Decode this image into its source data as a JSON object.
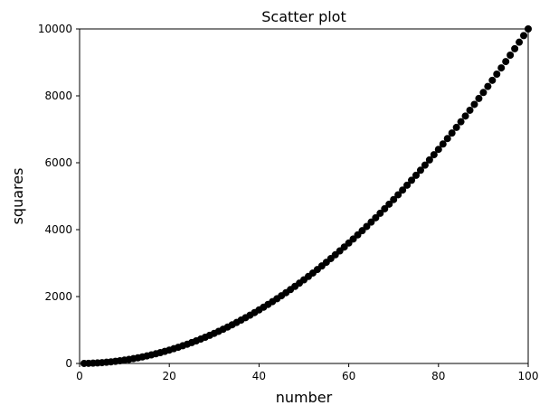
{
  "chart_data": {
    "type": "scatter",
    "title": "Scatter plot",
    "xlabel": "number",
    "ylabel": "squares",
    "xlim": [
      0,
      100
    ],
    "ylim": [
      0,
      10000
    ],
    "x_ticks": [
      0,
      20,
      40,
      60,
      80,
      100
    ],
    "y_ticks": [
      0,
      2000,
      4000,
      6000,
      8000,
      10000
    ],
    "grid": false,
    "marker_color": "#000000",
    "series": [
      {
        "x": [
          1,
          2,
          3,
          4,
          5,
          6,
          7,
          8,
          9,
          10,
          11,
          12,
          13,
          14,
          15,
          16,
          17,
          18,
          19,
          20,
          21,
          22,
          23,
          24,
          25,
          26,
          27,
          28,
          29,
          30,
          31,
          32,
          33,
          34,
          35,
          36,
          37,
          38,
          39,
          40,
          41,
          42,
          43,
          44,
          45,
          46,
          47,
          48,
          49,
          50,
          51,
          52,
          53,
          54,
          55,
          56,
          57,
          58,
          59,
          60,
          61,
          62,
          63,
          64,
          65,
          66,
          67,
          68,
          69,
          70,
          71,
          72,
          73,
          74,
          75,
          76,
          77,
          78,
          79,
          80,
          81,
          82,
          83,
          84,
          85,
          86,
          87,
          88,
          89,
          90,
          91,
          92,
          93,
          94,
          95,
          96,
          97,
          98,
          99,
          100
        ],
        "y": [
          1,
          4,
          9,
          16,
          25,
          36,
          49,
          64,
          81,
          100,
          121,
          144,
          169,
          196,
          225,
          256,
          289,
          324,
          361,
          400,
          441,
          484,
          529,
          576,
          625,
          676,
          729,
          784,
          841,
          900,
          961,
          1024,
          1089,
          1156,
          1225,
          1296,
          1369,
          1444,
          1521,
          1600,
          1681,
          1764,
          1849,
          1936,
          2025,
          2116,
          2209,
          2304,
          2401,
          2500,
          2601,
          2704,
          2809,
          2916,
          3025,
          3136,
          3249,
          3364,
          3481,
          3600,
          3721,
          3844,
          3969,
          4096,
          4225,
          4356,
          4489,
          4624,
          4761,
          4900,
          5041,
          5184,
          5329,
          5476,
          5625,
          5776,
          5929,
          6084,
          6241,
          6400,
          6561,
          6724,
          6889,
          7056,
          7225,
          7396,
          7569,
          7744,
          7921,
          8100,
          8281,
          8464,
          8649,
          8836,
          9025,
          9216,
          9409,
          9604,
          9801,
          10000
        ]
      }
    ]
  }
}
